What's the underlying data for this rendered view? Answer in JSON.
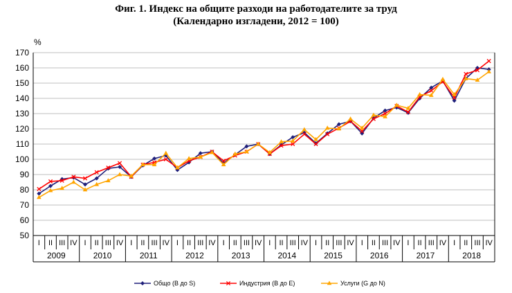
{
  "chart_data": {
    "type": "line",
    "title": "Фиг. 1. Индекс на общите разходи на работодателите за труд",
    "subtitle": "(Календарно изгладени, 2012 = 100)",
    "ylabel": "%",
    "ylim": [
      50,
      170
    ],
    "yticks": [
      50,
      60,
      70,
      80,
      90,
      100,
      110,
      120,
      130,
      140,
      150,
      160,
      170
    ],
    "grid": true,
    "legend_position": "bottom",
    "quarters": [
      "I",
      "II",
      "III",
      "IV"
    ],
    "years": [
      "2009",
      "2010",
      "2011",
      "2012",
      "2013",
      "2014",
      "2015",
      "2016",
      "2017",
      "2018"
    ],
    "series": [
      {
        "name": "Общо (B до S)",
        "color": "#1f1f7a",
        "marker": "diamond",
        "values": [
          77.5,
          82.5,
          87,
          88,
          83.5,
          87.5,
          94,
          95,
          88.5,
          96,
          100.5,
          102.5,
          93,
          98,
          104,
          105,
          97.5,
          103,
          108.5,
          110,
          103.5,
          109.5,
          114.5,
          117.5,
          110.5,
          117,
          123,
          125,
          117,
          127,
          132,
          134,
          130.5,
          140,
          147,
          151.5,
          138.5,
          153,
          160,
          159
        ]
      },
      {
        "name": "Индустрия (B до E)",
        "color": "#ff0000",
        "marker": "x",
        "values": [
          80.5,
          85.5,
          86,
          88.5,
          87.5,
          91.5,
          94.5,
          97.5,
          88.5,
          96.5,
          98,
          100,
          94.5,
          99,
          101.5,
          105,
          99,
          102.5,
          105,
          110,
          103.5,
          109,
          110,
          116.5,
          110,
          116.5,
          120.5,
          125,
          118.5,
          126.5,
          130,
          135,
          131,
          141,
          145,
          151,
          140.5,
          156,
          158.5,
          164.5
        ]
      },
      {
        "name": "Услуги (G до N)",
        "color": "#ffa500",
        "marker": "triangle",
        "values": [
          75,
          79.5,
          81,
          85,
          80,
          83.5,
          86,
          90,
          89,
          96.5,
          96.5,
          104,
          94.5,
          100.5,
          101.5,
          104.5,
          96.5,
          103.5,
          105,
          110,
          104.5,
          111.5,
          112,
          119.5,
          113,
          120.5,
          120,
          126.5,
          120.5,
          129,
          128,
          135.5,
          133.5,
          142.5,
          142,
          152.5,
          142.5,
          153,
          152,
          157.5
        ]
      }
    ]
  }
}
